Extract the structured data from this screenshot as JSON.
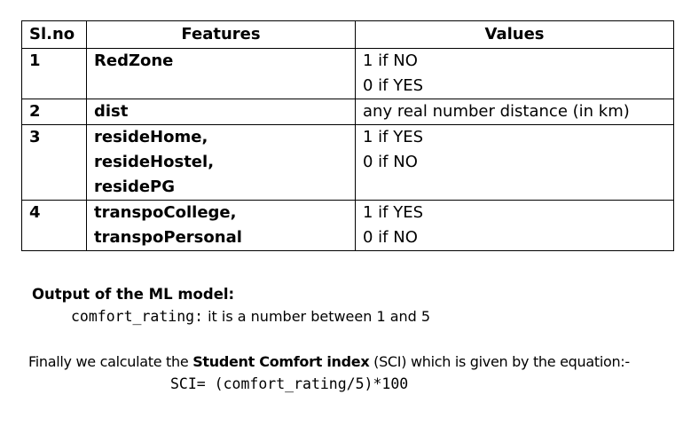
{
  "table": {
    "headers": [
      "Sl.no",
      "Features",
      "Values"
    ],
    "rows": [
      {
        "sl": "1",
        "features": [
          "RedZone"
        ],
        "values": [
          "1 if NO",
          "0 if YES"
        ]
      },
      {
        "sl": "2",
        "features": [
          "dist"
        ],
        "values": [
          "any real number distance (in km)"
        ]
      },
      {
        "sl": "3",
        "features": [
          "resideHome,",
          "resideHostel,",
          "residePG"
        ],
        "values": [
          "1 if YES",
          "0 if NO"
        ]
      },
      {
        "sl": "4",
        "features": [
          "transpoCollege,",
          "transpoPersonal"
        ],
        "values": [
          "1 if YES",
          "0 if NO"
        ]
      }
    ]
  },
  "output": {
    "heading": "Output of the ML model:",
    "variable": "comfort_rating:",
    "description": " it is a number between 1 and 5"
  },
  "conclusion": {
    "prefix": "Finally we calculate the ",
    "bold_term": "Student Comfort index",
    "suffix": " (SCI) which is given by the equation:-",
    "equation_lhs": "SCI= ",
    "equation_rhs": "(comfort_rating/5)*100"
  }
}
